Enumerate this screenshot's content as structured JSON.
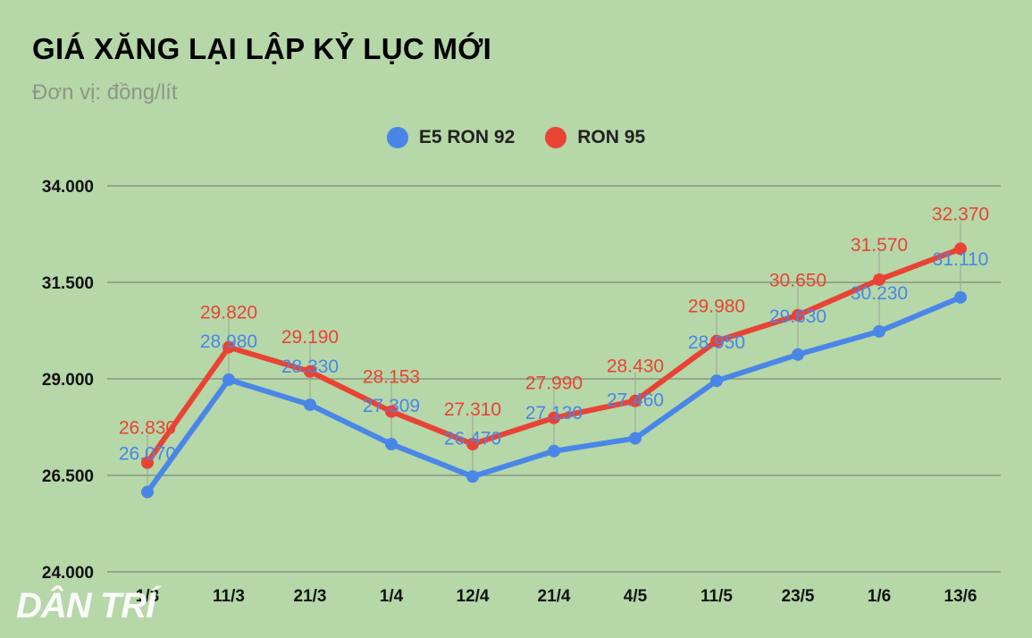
{
  "title": "GIÁ XĂNG LẠI LẬP KỶ LỤC MỚI",
  "subtitle": "Đơn vị: đồng/lít",
  "watermark": "DÂN TRÍ",
  "chart_data": {
    "type": "line",
    "title": "GIÁ XĂNG LẠI LẬP KỶ LỤC MỚI",
    "subtitle": "Đơn vị: đồng/lít",
    "categories": [
      "1/3",
      "11/3",
      "21/3",
      "1/4",
      "12/4",
      "21/4",
      "4/5",
      "11/5",
      "23/5",
      "1/6",
      "13/6"
    ],
    "ylim": [
      24000,
      34000
    ],
    "yticks": [
      24000,
      26500,
      29000,
      31500,
      34000
    ],
    "ytick_labels": [
      "24.000",
      "26.500",
      "29.000",
      "31.500",
      "34.000"
    ],
    "legend_position": "top-center",
    "grid": true,
    "series": [
      {
        "name": "E5 RON 92",
        "color": "#4a86e8",
        "values": [
          26070,
          28980,
          28330,
          27309,
          26470,
          27130,
          27460,
          28950,
          29630,
          30230,
          31110
        ],
        "labels": [
          "26.070",
          "28.980",
          "28.330",
          "27.309",
          "26.470",
          "27.130",
          "27.460",
          "28.950",
          "29.630",
          "30.230",
          "31.110"
        ]
      },
      {
        "name": "RON 95",
        "color": "#e84335",
        "values": [
          26830,
          29820,
          29190,
          28153,
          27310,
          27990,
          28430,
          29980,
          30650,
          31570,
          32370
        ],
        "labels": [
          "26.830",
          "29.820",
          "29.190",
          "28.153",
          "27.310",
          "27.990",
          "28.430",
          "29.980",
          "30.650",
          "31.570",
          "32.370"
        ]
      }
    ]
  }
}
